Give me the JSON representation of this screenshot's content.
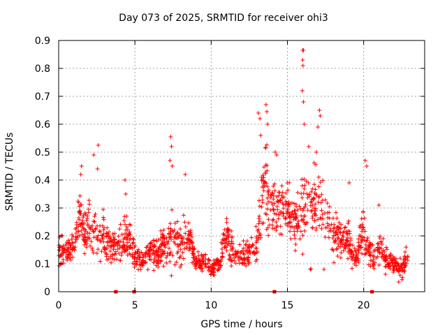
{
  "chart_data": {
    "type": "scatter",
    "title": "Day 073 of 2025, SRMTID for receiver ohi3",
    "xlabel": "GPS time / hours",
    "ylabel": "SRMTID / TECUs",
    "xlim": [
      0,
      24
    ],
    "ylim": [
      0,
      0.9
    ],
    "xticks": [
      "0",
      "5",
      "10",
      "15",
      "20"
    ],
    "xtick_values": [
      0,
      5,
      10,
      15,
      20
    ],
    "yticks": [
      "0",
      "0.1",
      "0.2",
      "0.3",
      "0.4",
      "0.5",
      "0.6",
      "0.7",
      "0.8",
      "0.9"
    ],
    "ytick_values": [
      0,
      0.1,
      0.2,
      0.3,
      0.4,
      0.5,
      0.6,
      0.7,
      0.8,
      0.9
    ],
    "grid": true,
    "marker": "+",
    "color": "#ff0000",
    "gap_markers_x": [
      3.75,
      4.95,
      14.15,
      20.55
    ],
    "profile": {
      "x": [
        0,
        0.5,
        1.0,
        1.4,
        1.7,
        2.0,
        2.5,
        3.0,
        3.5,
        4.0,
        4.5,
        5.0,
        5.5,
        6.0,
        6.5,
        7.0,
        7.5,
        8.0,
        8.5,
        9.0,
        9.5,
        10.0,
        10.5,
        11.0,
        11.5,
        12.0,
        12.5,
        13.0,
        13.3,
        13.6,
        14.0,
        14.3,
        14.6,
        15.0,
        15.5,
        15.9,
        16.3,
        16.7,
        17.0,
        17.5,
        18.0,
        18.5,
        19.0,
        19.5,
        20.0,
        20.3,
        20.7,
        21.0,
        21.5,
        22.0,
        22.5,
        22.9
      ],
      "center": [
        0.15,
        0.14,
        0.16,
        0.28,
        0.2,
        0.24,
        0.2,
        0.2,
        0.16,
        0.17,
        0.2,
        0.13,
        0.11,
        0.15,
        0.14,
        0.18,
        0.19,
        0.17,
        0.2,
        0.1,
        0.11,
        0.08,
        0.1,
        0.2,
        0.14,
        0.13,
        0.14,
        0.16,
        0.35,
        0.38,
        0.3,
        0.28,
        0.3,
        0.3,
        0.24,
        0.3,
        0.32,
        0.3,
        0.35,
        0.25,
        0.2,
        0.18,
        0.17,
        0.12,
        0.22,
        0.15,
        0.12,
        0.16,
        0.12,
        0.1,
        0.09,
        0.13
      ],
      "spread": [
        0.06,
        0.05,
        0.06,
        0.1,
        0.08,
        0.1,
        0.1,
        0.09,
        0.06,
        0.07,
        0.08,
        0.05,
        0.04,
        0.06,
        0.06,
        0.09,
        0.1,
        0.08,
        0.08,
        0.04,
        0.04,
        0.03,
        0.04,
        0.07,
        0.05,
        0.05,
        0.05,
        0.06,
        0.15,
        0.14,
        0.1,
        0.09,
        0.11,
        0.1,
        0.09,
        0.13,
        0.15,
        0.12,
        0.14,
        0.1,
        0.08,
        0.07,
        0.07,
        0.05,
        0.1,
        0.06,
        0.05,
        0.06,
        0.05,
        0.04,
        0.04,
        0.04
      ]
    },
    "highlights": [
      {
        "x": 1.5,
        "y": 0.45
      },
      {
        "x": 1.45,
        "y": 0.42
      },
      {
        "x": 2.3,
        "y": 0.49
      },
      {
        "x": 2.6,
        "y": 0.525
      },
      {
        "x": 2.55,
        "y": 0.44
      },
      {
        "x": 4.35,
        "y": 0.4
      },
      {
        "x": 4.4,
        "y": 0.35
      },
      {
        "x": 7.35,
        "y": 0.555
      },
      {
        "x": 7.4,
        "y": 0.52
      },
      {
        "x": 7.3,
        "y": 0.47
      },
      {
        "x": 7.45,
        "y": 0.45
      },
      {
        "x": 8.3,
        "y": 0.42
      },
      {
        "x": 13.1,
        "y": 0.64
      },
      {
        "x": 13.2,
        "y": 0.62
      },
      {
        "x": 13.6,
        "y": 0.67
      },
      {
        "x": 13.65,
        "y": 0.645
      },
      {
        "x": 13.7,
        "y": 0.6
      },
      {
        "x": 13.25,
        "y": 0.56
      },
      {
        "x": 14.2,
        "y": 0.5
      },
      {
        "x": 14.3,
        "y": 0.49
      },
      {
        "x": 16.0,
        "y": 0.865
      },
      {
        "x": 16.05,
        "y": 0.865
      },
      {
        "x": 16.0,
        "y": 0.83
      },
      {
        "x": 16.02,
        "y": 0.81
      },
      {
        "x": 15.98,
        "y": 0.72
      },
      {
        "x": 16.05,
        "y": 0.68
      },
      {
        "x": 16.1,
        "y": 0.6
      },
      {
        "x": 16.4,
        "y": 0.52
      },
      {
        "x": 17.1,
        "y": 0.65
      },
      {
        "x": 17.15,
        "y": 0.63
      },
      {
        "x": 17.0,
        "y": 0.59
      },
      {
        "x": 16.9,
        "y": 0.5
      },
      {
        "x": 19.05,
        "y": 0.39
      },
      {
        "x": 20.1,
        "y": 0.47
      },
      {
        "x": 20.2,
        "y": 0.45
      },
      {
        "x": 21.0,
        "y": 0.31
      },
      {
        "x": 16.5,
        "y": 0.08
      },
      {
        "x": 16.55,
        "y": 0.082
      },
      {
        "x": 17.4,
        "y": 0.08
      },
      {
        "x": 22.3,
        "y": 0.035
      }
    ]
  }
}
